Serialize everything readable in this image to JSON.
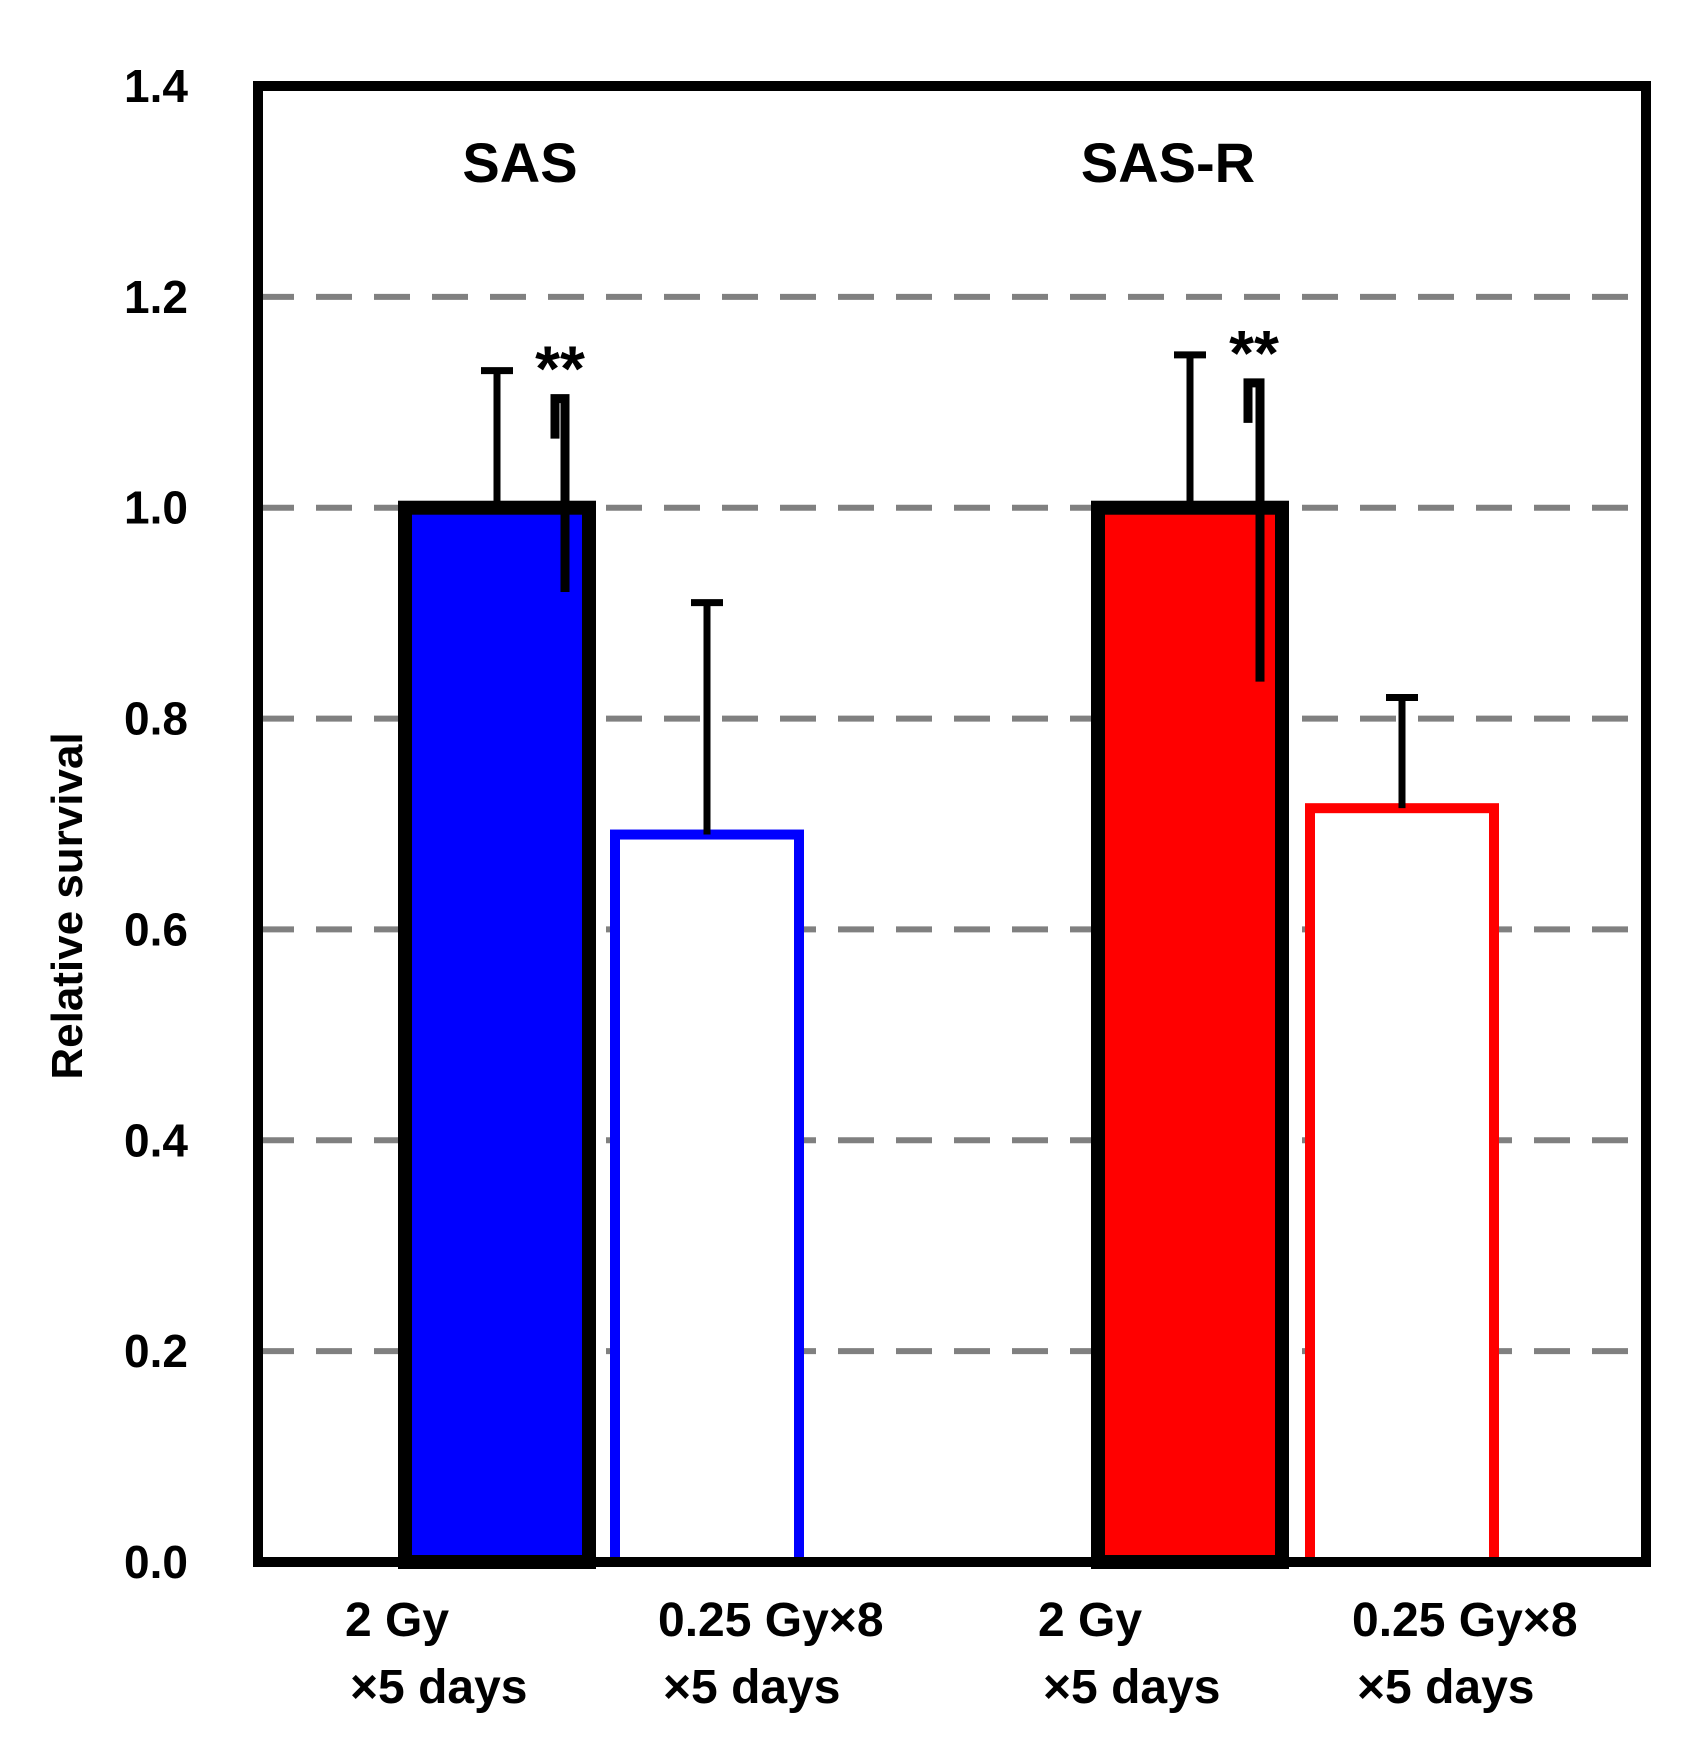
{
  "chart_data": {
    "type": "bar",
    "ylabel": "Relative survival",
    "xlabel": "",
    "title": "",
    "ylim": [
      0,
      1.4
    ],
    "yticks": [
      "0.0",
      "0.2",
      "0.4",
      "0.6",
      "0.8",
      "1.0",
      "1.2",
      "1.4"
    ],
    "gridlines": [
      0.2,
      0.4,
      0.6,
      0.8,
      1.0,
      1.2
    ],
    "grid": "dashed horizontal",
    "groups": [
      {
        "label": "SAS",
        "color": "#0000ff",
        "significance": "**",
        "bars": [
          {
            "label_line1": "2 Gy",
            "label_line2": "×5 days",
            "value": 1.0,
            "error": 0.13,
            "style": "filled"
          },
          {
            "label_line1": "0.25  Gy×8",
            "label_line2": "×5 days",
            "value": 0.69,
            "error": 0.22,
            "style": "hollow"
          }
        ]
      },
      {
        "label": "SAS-R",
        "color": "#ff0000",
        "significance": "**",
        "bars": [
          {
            "label_line1": "2 Gy",
            "label_line2": "×5 days",
            "value": 1.0,
            "error": 0.145,
            "style": "filled"
          },
          {
            "label_line1": "0.25  Gy×8",
            "label_line2": "×5 days",
            "value": 0.715,
            "error": 0.105,
            "style": "hollow"
          }
        ]
      }
    ]
  }
}
